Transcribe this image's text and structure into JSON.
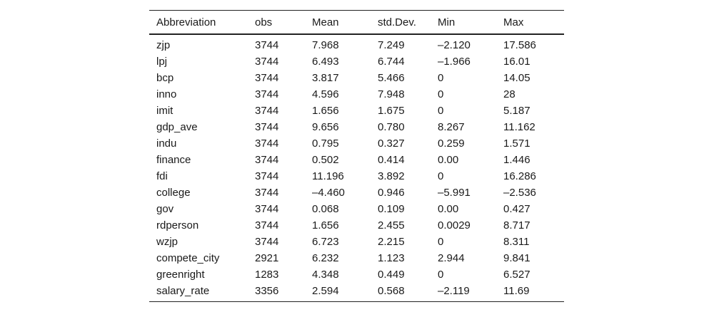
{
  "table": {
    "headers": [
      "Abbreviation",
      "obs",
      "Mean",
      "std.Dev.",
      "Min",
      "Max"
    ],
    "rows": [
      [
        "zjp",
        "3744",
        "7.968",
        "7.249",
        "–2.120",
        "17.586"
      ],
      [
        "lpj",
        "3744",
        "6.493",
        "6.744",
        "–1.966",
        "16.01"
      ],
      [
        "bcp",
        "3744",
        "3.817",
        "5.466",
        "0",
        "14.05"
      ],
      [
        "inno",
        "3744",
        "4.596",
        "7.948",
        "0",
        "28"
      ],
      [
        "imit",
        "3744",
        "1.656",
        "1.675",
        "0",
        "5.187"
      ],
      [
        "gdp_ave",
        "3744",
        "9.656",
        "0.780",
        "8.267",
        "11.162"
      ],
      [
        "indu",
        "3744",
        "0.795",
        "0.327",
        "0.259",
        "1.571"
      ],
      [
        "finance",
        "3744",
        "0.502",
        "0.414",
        "0.00",
        "1.446"
      ],
      [
        "fdi",
        "3744",
        "11.196",
        "3.892",
        "0",
        "16.286"
      ],
      [
        "college",
        "3744",
        "–4.460",
        "0.946",
        "–5.991",
        "–2.536"
      ],
      [
        "gov",
        "3744",
        "0.068",
        "0.109",
        "0.00",
        "0.427"
      ],
      [
        "rdperson",
        "3744",
        "1.656",
        "2.455",
        "0.0029",
        "8.717"
      ],
      [
        "wzjp",
        "3744",
        "6.723",
        "2.215",
        "0",
        "8.311"
      ],
      [
        "compete_city",
        "2921",
        "6.232",
        "1.123",
        "2.944",
        "9.841"
      ],
      [
        "greenright",
        "1283",
        "4.348",
        "0.449",
        "0",
        "6.527"
      ],
      [
        "salary_rate",
        "3356",
        "2.594",
        "0.568",
        "–2.119",
        "11.69"
      ]
    ]
  }
}
